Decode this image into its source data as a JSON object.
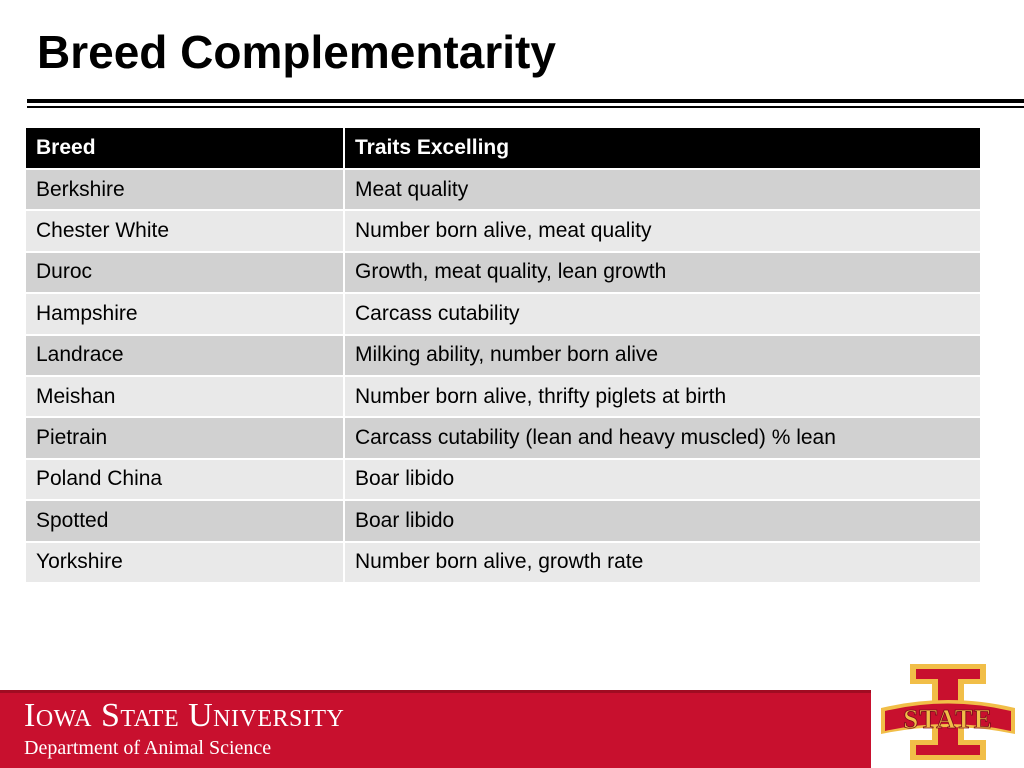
{
  "slide": {
    "title": "Breed Complementarity"
  },
  "table": {
    "headers": [
      "Breed",
      "Traits Excelling"
    ],
    "rows": [
      [
        "Berkshire",
        "Meat quality"
      ],
      [
        "Chester White",
        "Number born alive, meat quality"
      ],
      [
        "Duroc",
        "Growth, meat quality, lean growth"
      ],
      [
        "Hampshire",
        "Carcass cutability"
      ],
      [
        "Landrace",
        "Milking ability, number born alive"
      ],
      [
        "Meishan",
        "Number born alive, thrifty piglets at birth"
      ],
      [
        "Pietrain",
        "Carcass cutability (lean and heavy muscled) % lean"
      ],
      [
        "Poland China",
        "Boar libido"
      ],
      [
        "Spotted",
        "Boar libido"
      ],
      [
        "Yorkshire",
        "Number born alive, growth rate"
      ]
    ]
  },
  "footer": {
    "university": "Iowa State University",
    "department": "Department of Animal Science",
    "logo_text": "STATE",
    "colors": {
      "cardinal": "#c8102e",
      "gold": "#f1be48"
    }
  }
}
